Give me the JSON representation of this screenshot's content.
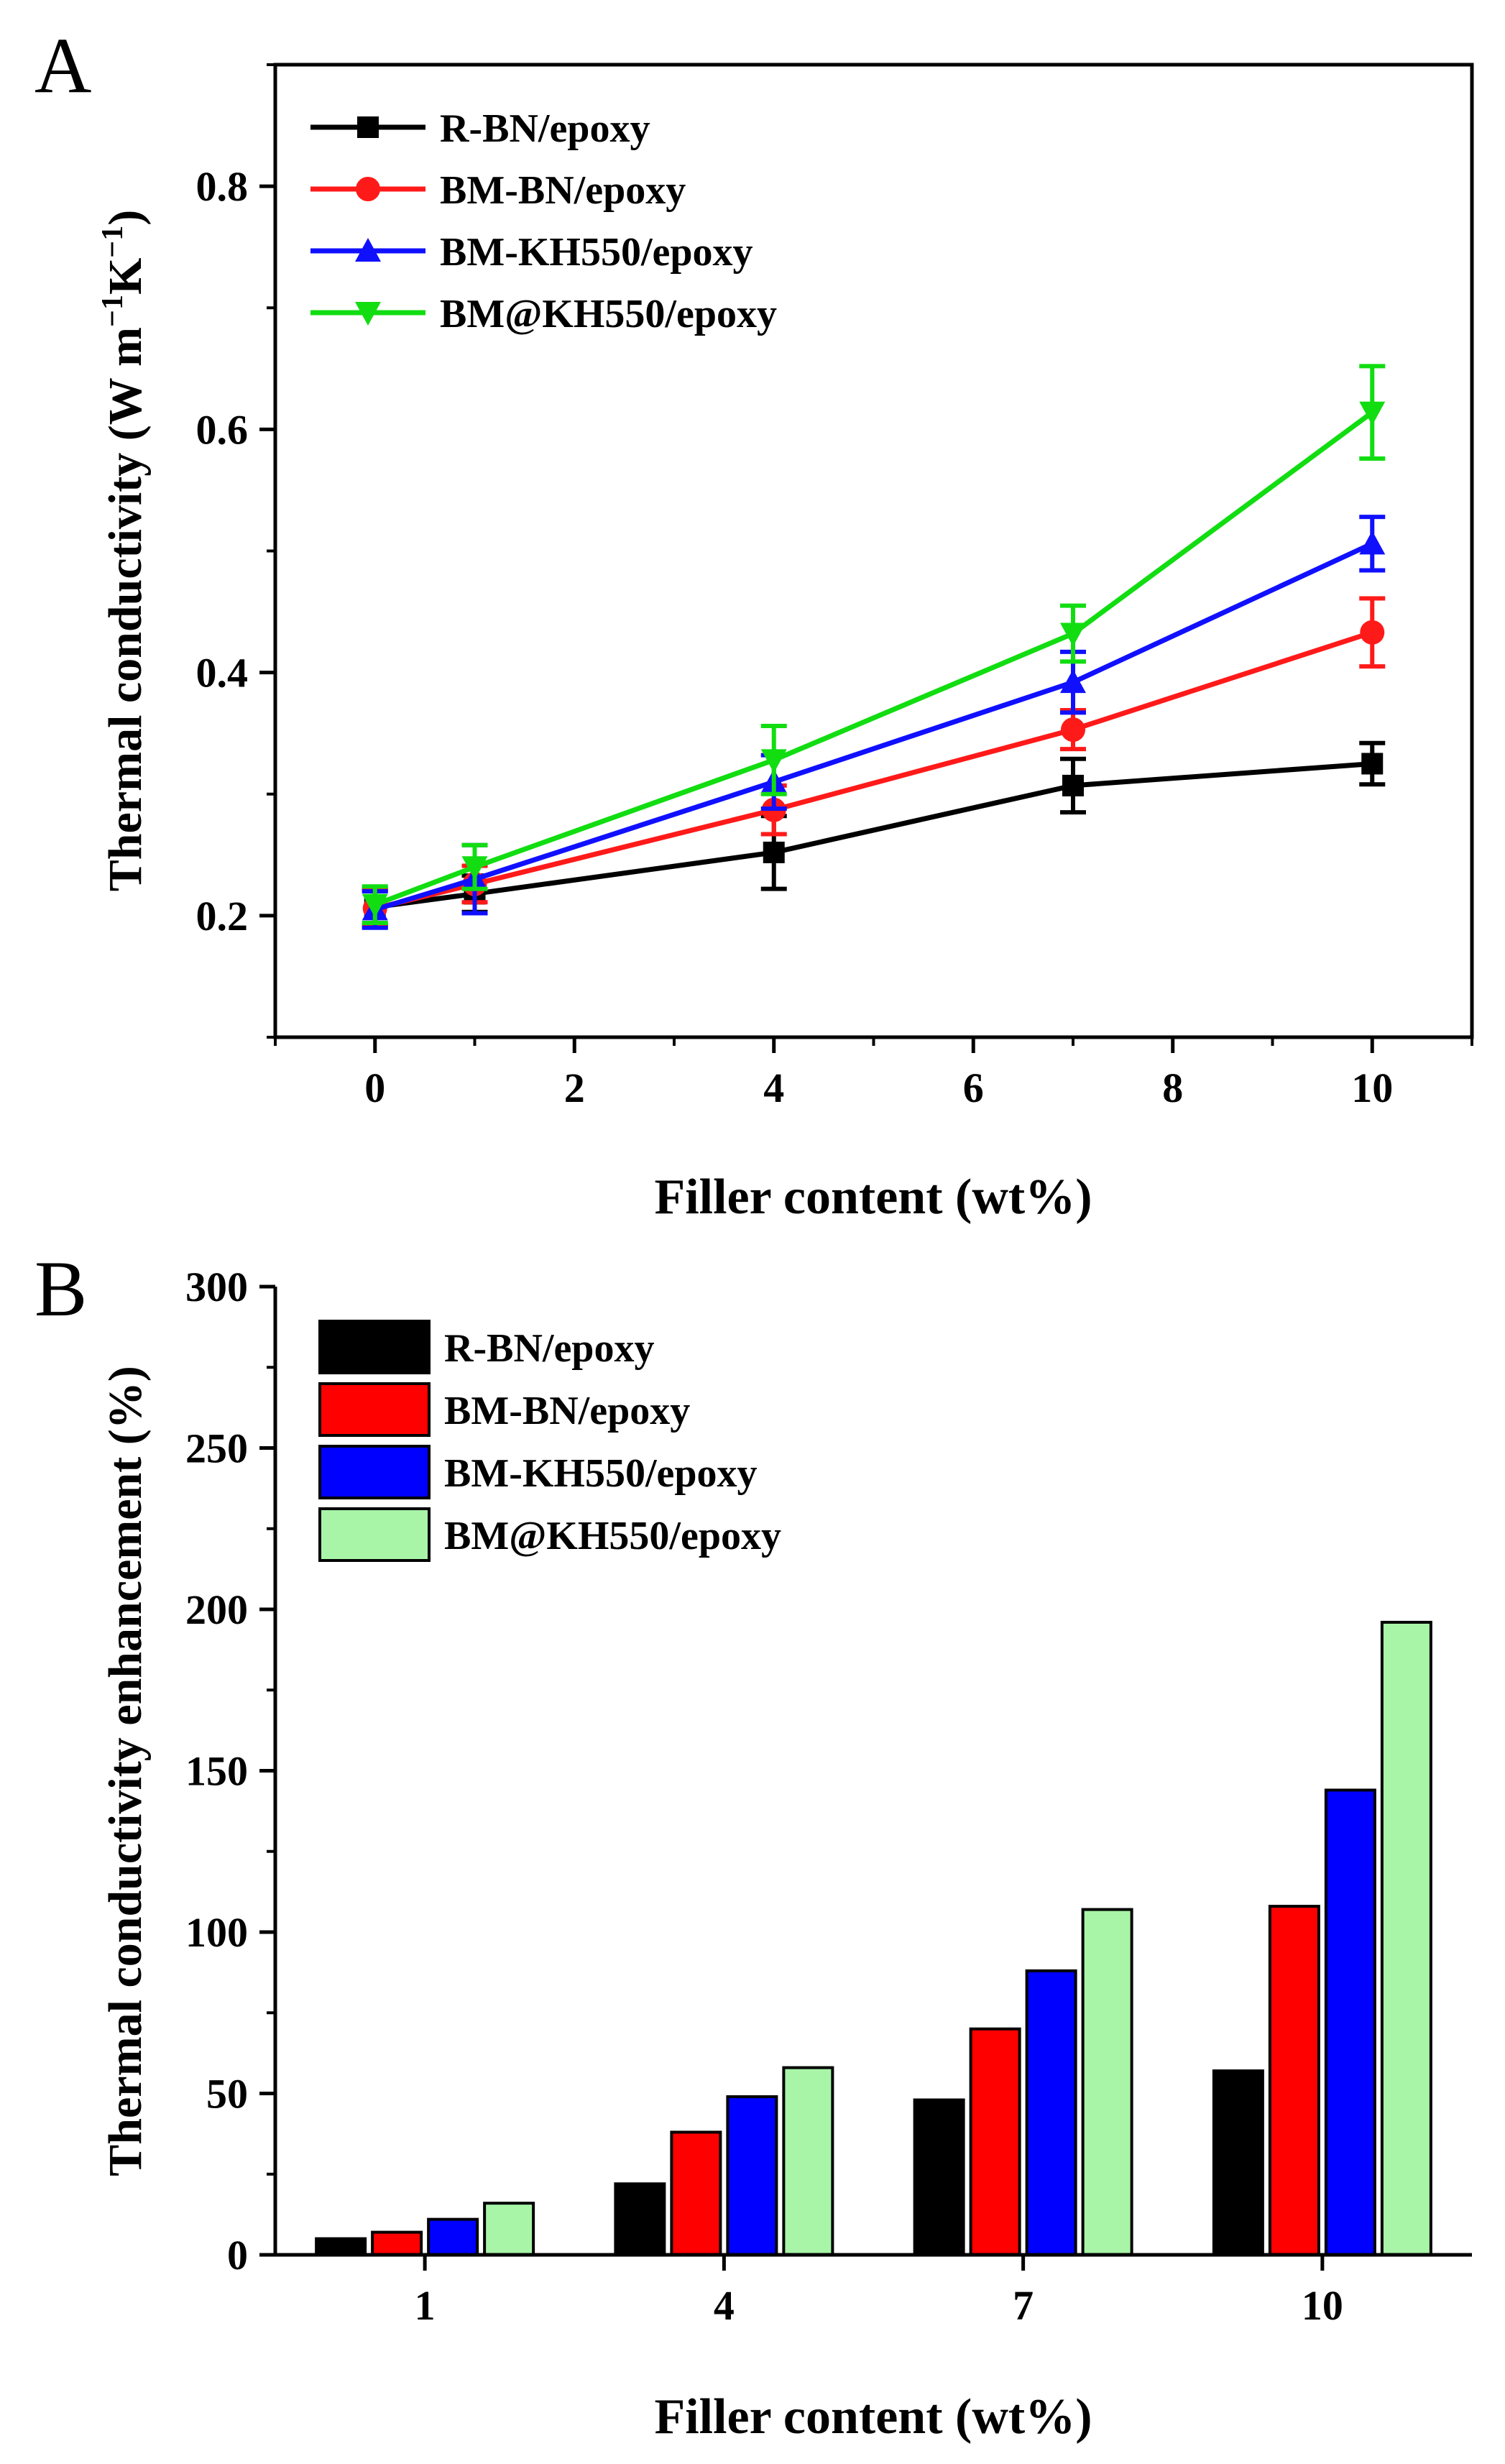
{
  "panels": {
    "a": {
      "letter": "A"
    },
    "b": {
      "letter": "B"
    }
  },
  "chart_data": [
    {
      "type": "line",
      "panel": "A",
      "xlabel": "Filler content (wt%)",
      "ylabel": "Thermal conductivity (W m",
      "ylabel_unit": {
        "sup1": "−1",
        "k": "K",
        "sup2": "−1",
        "close": ")"
      },
      "xlim": [
        -1,
        11
      ],
      "ylim": [
        0.1,
        0.9
      ],
      "xticks": [
        0,
        2,
        4,
        6,
        8,
        10
      ],
      "xtick_labels": [
        "0",
        "2",
        "4",
        "6",
        "8",
        "10"
      ],
      "yticks": [
        0.2,
        0.4,
        0.6,
        0.8
      ],
      "ytick_labels": [
        "0.2",
        "0.4",
        "0.6",
        "0.8"
      ],
      "legend_position": "top-left",
      "x": [
        0,
        1,
        4,
        7,
        10
      ],
      "series": [
        {
          "name": "R-BN/epoxy",
          "color": "#000000",
          "marker": "square",
          "values": [
            0.207,
            0.218,
            0.252,
            0.307,
            0.325
          ],
          "errors": [
            0.015,
            0.015,
            0.03,
            0.022,
            0.017
          ]
        },
        {
          "name": "BM-BN/epoxy",
          "color": "#ff1a1a",
          "marker": "circle",
          "values": [
            0.206,
            0.226,
            0.287,
            0.353,
            0.433
          ],
          "errors": [
            0.015,
            0.015,
            0.02,
            0.016,
            0.028
          ]
        },
        {
          "name": "BM-KH550/epoxy",
          "color": "#1010ff",
          "marker": "triangle-up",
          "values": [
            0.205,
            0.23,
            0.31,
            0.392,
            0.506
          ],
          "errors": [
            0.015,
            0.028,
            0.022,
            0.025,
            0.022
          ]
        },
        {
          "name": "BM@KH550/epoxy",
          "color": "#11dd11",
          "marker": "triangle-down",
          "values": [
            0.209,
            0.24,
            0.328,
            0.432,
            0.614
          ],
          "errors": [
            0.015,
            0.018,
            0.028,
            0.023,
            0.038
          ]
        }
      ]
    },
    {
      "type": "bar",
      "panel": "B",
      "xlabel": "Filler content (wt%)",
      "ylabel": "Thermal conductivity enhancement (%)",
      "categories": [
        "1",
        "4",
        "7",
        "10"
      ],
      "ylim": [
        0,
        300
      ],
      "yticks": [
        0,
        50,
        100,
        150,
        200,
        250,
        300
      ],
      "ytick_labels": [
        "0",
        "50",
        "100",
        "150",
        "200",
        "250",
        "300"
      ],
      "legend_position": "top-left",
      "series": [
        {
          "name": "R-BN/epoxy",
          "color": "#000000",
          "values": [
            5,
            22,
            48,
            57
          ]
        },
        {
          "name": "BM-BN/epoxy",
          "color": "#ff0000",
          "values": [
            7,
            38,
            70,
            108
          ]
        },
        {
          "name": "BM-KH550/epoxy",
          "color": "#0000ff",
          "values": [
            11,
            49,
            88,
            144
          ]
        },
        {
          "name": "BM@KH550/epoxy",
          "color": "#a8f5a8",
          "values": [
            16,
            58,
            107,
            196
          ]
        }
      ]
    }
  ]
}
